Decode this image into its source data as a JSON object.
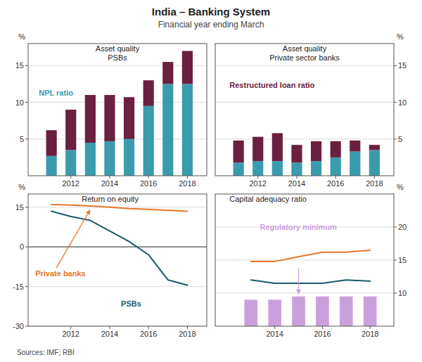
{
  "title": "India – Banking System",
  "subtitle": "Financial year ending March",
  "source": "Sources: IMF; RBI",
  "chart_data": [
    {
      "type": "bar",
      "stacked": true,
      "title": "Asset quality\nPSBs",
      "ylabel": "%",
      "x": [
        2011,
        2012,
        2013,
        2014,
        2015,
        2016,
        2017,
        2018
      ],
      "xlim": [
        2009.8,
        2019.0
      ],
      "xticks": [
        2012,
        2014,
        2016,
        2018
      ],
      "ylim": [
        0,
        18
      ],
      "yticks": [
        5,
        10,
        15
      ],
      "grid": true,
      "series": [
        {
          "name": "NPL ratio",
          "color": "#3A9BAD",
          "values": [
            2.7,
            3.5,
            4.5,
            4.7,
            5.0,
            9.5,
            12.5,
            12.5
          ]
        },
        {
          "color": "#6B2040",
          "values": [
            3.5,
            5.5,
            6.5,
            6.3,
            5.7,
            3.5,
            3.0,
            4.5
          ]
        }
      ]
    },
    {
      "type": "bar",
      "stacked": true,
      "title": "Asset quality\nPrivate sector banks",
      "ylabel": "%",
      "x": [
        2011,
        2012,
        2013,
        2014,
        2015,
        2016,
        2017,
        2018
      ],
      "xlim": [
        2009.8,
        2019.0
      ],
      "xticks": [
        2012,
        2014,
        2016,
        2018
      ],
      "ylim": [
        0,
        18
      ],
      "yticks": [
        5,
        10,
        15
      ],
      "grid": true,
      "series": [
        {
          "color": "#3A9BAD",
          "values": [
            1.8,
            2.0,
            2.0,
            1.8,
            2.0,
            2.5,
            3.3,
            3.5
          ]
        },
        {
          "name": "Restructured loan ratio",
          "color": "#6B2040",
          "values": [
            3.0,
            3.3,
            3.8,
            2.4,
            2.7,
            2.2,
            1.5,
            0.7
          ]
        }
      ]
    },
    {
      "type": "line",
      "title": "Return on equity",
      "ylabel": "%",
      "x": [
        2011,
        2012,
        2013,
        2014,
        2015,
        2016,
        2017,
        2018
      ],
      "xlim": [
        2009.8,
        2019.0
      ],
      "xticks": [
        2012,
        2014,
        2016,
        2018
      ],
      "ylim": [
        -30,
        20
      ],
      "yticks": [
        -30,
        -15,
        0,
        15
      ],
      "grid": true,
      "series": [
        {
          "name": "Private banks",
          "color": "#E8762B",
          "values": [
            16.0,
            15.8,
            15.5,
            15.0,
            14.5,
            14.2,
            13.8,
            13.5
          ]
        },
        {
          "name": "PSBs",
          "color": "#1A5A6B",
          "values": [
            13.5,
            11.5,
            10.0,
            6.0,
            2.0,
            -3.0,
            -12.5,
            -14.5
          ]
        }
      ]
    },
    {
      "type": "bar",
      "title": "Capital adequacy ratio",
      "ylabel": "%",
      "x": [
        2013,
        2014,
        2015,
        2016,
        2017,
        2018
      ],
      "xlim": [
        2011.5,
        2019.0
      ],
      "xticks": [
        2014,
        2016,
        2018
      ],
      "ylim": [
        5,
        25
      ],
      "yticks": [
        10,
        15,
        20
      ],
      "grid": true,
      "series": [
        {
          "name": "Regulatory minimum",
          "type": "bar",
          "color": "#C9A0DC",
          "values": [
            9.0,
            9.0,
            9.5,
            9.5,
            9.5,
            9.5
          ]
        },
        {
          "type": "line",
          "color": "#E8762B",
          "values": [
            14.8,
            14.8,
            15.5,
            16.2,
            16.2,
            16.5
          ]
        },
        {
          "type": "line",
          "color": "#1A5A6B",
          "values": [
            12.0,
            11.5,
            11.5,
            11.5,
            12.0,
            11.8
          ]
        }
      ]
    }
  ]
}
